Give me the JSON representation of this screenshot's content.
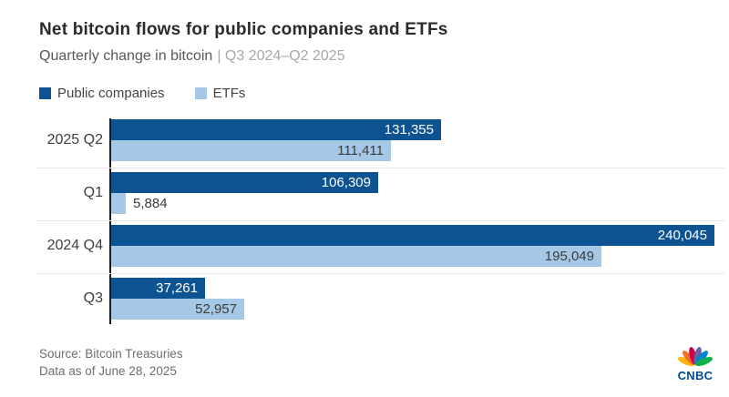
{
  "header": {
    "title": "Net bitcoin flows for public companies and ETFs",
    "subtitle_main": "Quarterly change in bitcoin",
    "subtitle_range": "| Q3 2024–Q2 2025"
  },
  "legend": {
    "items": [
      {
        "label": "Public companies",
        "color": "#0e5391"
      },
      {
        "label": "ETFs",
        "color": "#a5c8e6"
      }
    ]
  },
  "chart_data": {
    "type": "bar",
    "orientation": "horizontal",
    "title": "Net bitcoin flows for public companies and ETFs",
    "subtitle": "Quarterly change in bitcoin | Q3 2024–Q2 2025",
    "categories": [
      "2025 Q2",
      "Q1",
      "2024 Q4",
      "Q3"
    ],
    "series": [
      {
        "name": "Public companies",
        "color": "#0e5391",
        "values": [
          131355,
          106309,
          240045,
          37261
        ],
        "labels": [
          "131,355",
          "106,309",
          "240,045",
          "37,261"
        ]
      },
      {
        "name": "ETFs",
        "color": "#a5c8e6",
        "values": [
          111411,
          5884,
          195049,
          52957
        ],
        "labels": [
          "111,411",
          "5,884",
          "195,049",
          "52,957"
        ]
      }
    ],
    "xlim": [
      0,
      243000
    ],
    "grid": "row-separators",
    "legend_position": "top-left",
    "axis_color": "#1c1c1c",
    "separator_color": "#e7e7e7"
  },
  "footer": {
    "source": "Source: Bitcoin Treasuries",
    "asof": "Data as of June 28, 2025",
    "logo_text": "CNBC",
    "logo_colors": [
      "#fcb711",
      "#f37021",
      "#cc004c",
      "#6460aa",
      "#0089d0",
      "#0db14b"
    ]
  }
}
